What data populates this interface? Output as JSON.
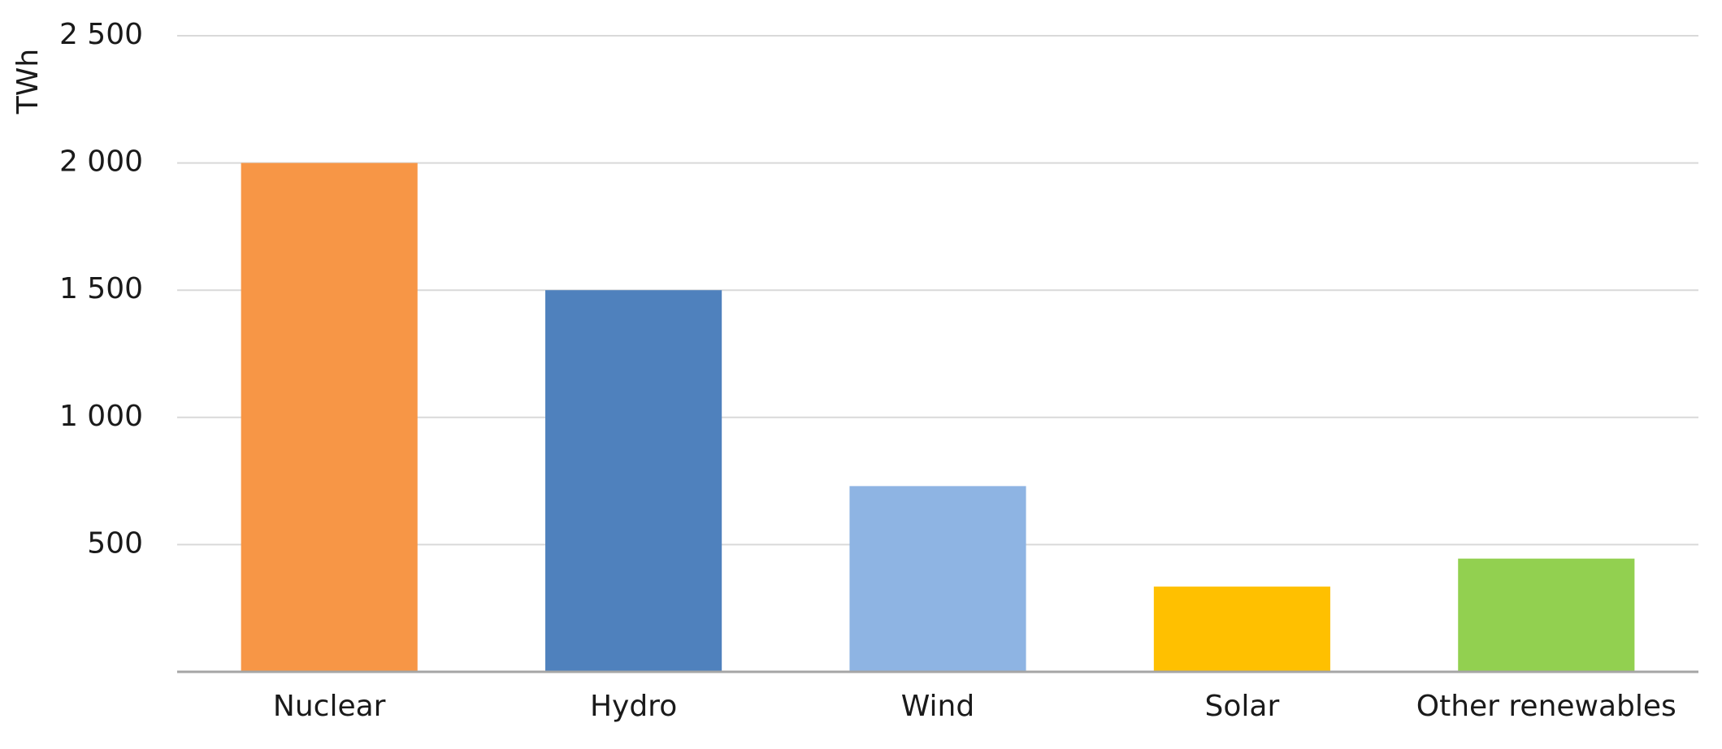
{
  "chart_data": {
    "type": "bar",
    "y_label": "TWh",
    "categories": [
      "Nuclear",
      "Hydro",
      "Wind",
      "Solar",
      "Other renewables"
    ],
    "values": [
      2000,
      1500,
      730,
      335,
      445
    ],
    "colors": [
      "#f79646",
      "#4f81bd",
      "#8eb4e3",
      "#ffc000",
      "#92d050"
    ],
    "ylim": [
      0,
      2500
    ],
    "yticks": [
      500,
      {
        "value": 1000,
        "label": "1 000"
      },
      {
        "value": 1500,
        "label": "1 500"
      },
      {
        "value": 2000,
        "label": "2 000"
      },
      {
        "value": 2500,
        "label": "2 500"
      }
    ],
    "grid": true
  }
}
